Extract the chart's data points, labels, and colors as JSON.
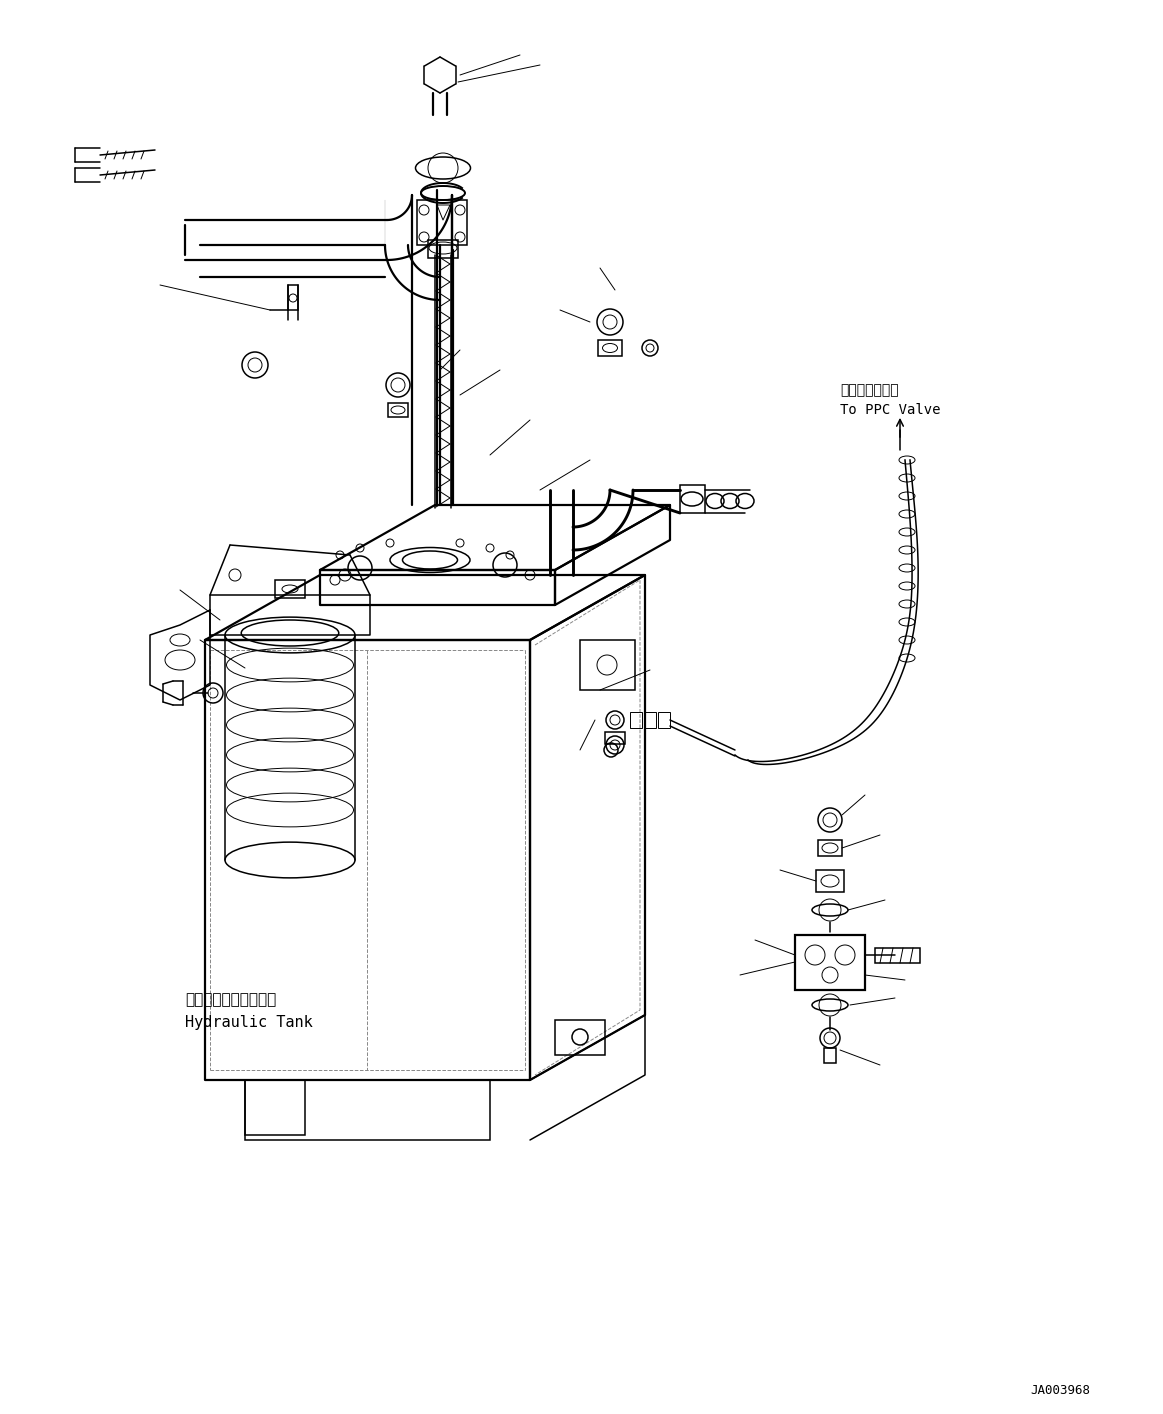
{
  "bg_color": "#ffffff",
  "line_color": "#000000",
  "fig_width": 11.63,
  "fig_height": 14.14,
  "dpi": 100,
  "label_ppc_jp": "ＰＰＣバルブへ",
  "label_ppc_en": "To PPC Valve",
  "label_tank_jp": "ハイドロリックタンク",
  "label_tank_en": "Hydraulic Tank",
  "label_code": "JA003968",
  "thin": 0.7,
  "med": 1.1,
  "thk": 1.6
}
